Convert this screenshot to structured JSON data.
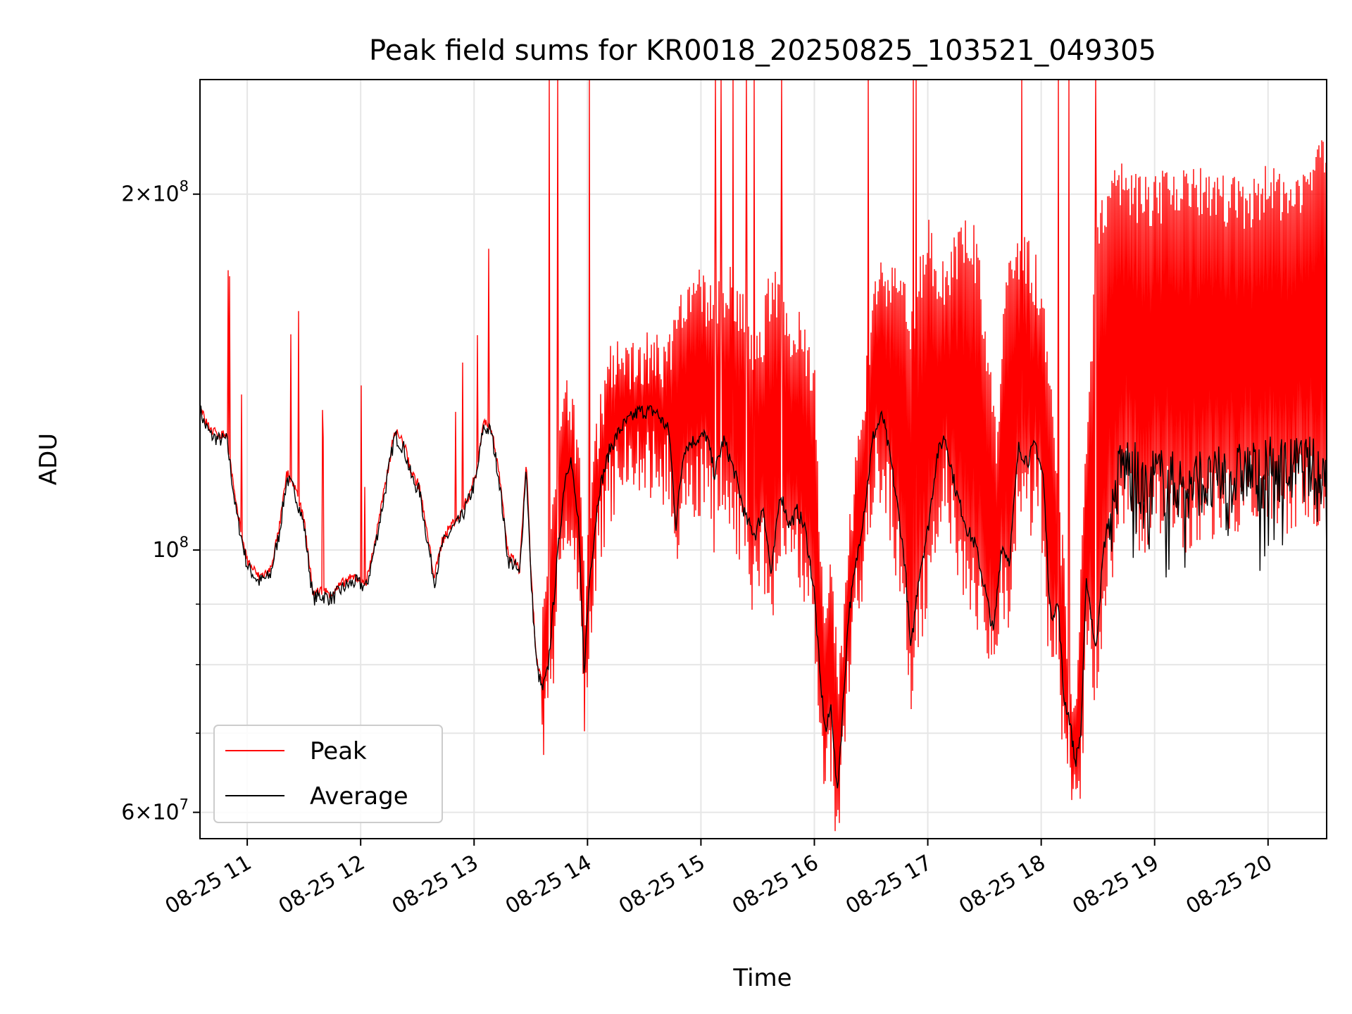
{
  "chart_data": {
    "type": "line",
    "title": "Peak field sums for KR0018_20250825_103521_049305",
    "xlabel": "Time",
    "ylabel": "ADU",
    "yscale": "log",
    "grid": true,
    "legend_position": "lower-left",
    "xlim": [
      "2025-08-25 10:35",
      "2025-08-25 20:31"
    ],
    "ylim": [
      57000000,
      250000000
    ],
    "x_ticks": [
      "08-25 11",
      "08-25 12",
      "08-25 13",
      "08-25 14",
      "08-25 15",
      "08-25 16",
      "08-25 17",
      "08-25 18",
      "08-25 19",
      "08-25 20"
    ],
    "y_major_ticks": [
      {
        "value": 60000000,
        "label_mantissa": "6",
        "label_base": "10",
        "label_exp": "7"
      },
      {
        "value": 100000000,
        "label_mantissa": "",
        "label_base": "10",
        "label_exp": "8"
      },
      {
        "value": 200000000,
        "label_mantissa": "2",
        "label_base": "10",
        "label_exp": "8"
      }
    ],
    "y_minor_ticks": [
      70000000,
      80000000,
      90000000
    ],
    "x_time_unit": "hours",
    "series": [
      {
        "name": "Peak",
        "color": "#ff0000",
        "x": [
          10.58,
          10.65,
          10.75,
          10.8,
          10.95,
          11.1,
          11.2,
          11.3,
          11.38,
          11.45,
          11.5,
          11.6,
          11.75,
          11.9,
          12.0,
          12.1,
          12.2,
          12.35,
          12.5,
          12.55,
          12.62,
          12.7,
          12.8,
          12.9,
          13.0,
          13.08,
          13.18,
          13.25,
          13.35,
          13.45,
          13.5,
          13.55,
          13.62,
          13.7,
          13.8,
          13.92,
          13.98,
          14.08,
          14.2,
          14.35,
          14.5,
          14.65,
          14.8,
          14.95,
          15.1,
          15.25,
          15.4,
          15.5,
          15.62,
          15.75,
          15.9,
          16.0,
          16.05,
          16.1,
          16.15,
          16.22,
          16.3,
          16.42,
          16.55,
          16.7,
          16.85,
          17.0,
          17.1,
          17.25,
          17.4,
          17.5,
          17.6,
          17.7,
          17.85,
          17.98,
          18.1,
          18.2,
          18.25,
          18.3,
          18.38,
          18.5,
          18.65,
          18.8,
          19.0,
          19.2,
          19.4,
          19.6,
          19.8,
          20.0,
          20.2,
          20.4,
          20.51
        ],
        "values": [
          135000000,
          128000000,
          126000000,
          125000000,
          108000000,
          97000000,
          94000000,
          96000000,
          112000000,
          118000000,
          107000000,
          92000000,
          91000000,
          93000000,
          95000000,
          94000000,
          105000000,
          124000000,
          115000000,
          114000000,
          97000000,
          105000000,
          107000000,
          113000000,
          115000000,
          129000000,
          121000000,
          103000000,
          96000000,
          118000000,
          85000000,
          78000000,
          83000000,
          97000000,
          125000000,
          108000000,
          80000000,
          112000000,
          128000000,
          130000000,
          130000000,
          129000000,
          140000000,
          150000000,
          145000000,
          150000000,
          140000000,
          130000000,
          150000000,
          140000000,
          135000000,
          125000000,
          90000000,
          80000000,
          85000000,
          70000000,
          90000000,
          115000000,
          150000000,
          155000000,
          140000000,
          165000000,
          150000000,
          160000000,
          165000000,
          140000000,
          110000000,
          155000000,
          160000000,
          150000000,
          120000000,
          85000000,
          70000000,
          65000000,
          100000000,
          170000000,
          185000000,
          180000000,
          178000000,
          182000000,
          180000000,
          178000000,
          176000000,
          182000000,
          180000000,
          185000000,
          195000000
        ]
      },
      {
        "name": "Average",
        "color": "#000000",
        "x": [
          10.58,
          10.62,
          10.68,
          10.75,
          10.82,
          10.9,
          11.0,
          11.1,
          11.2,
          11.28,
          11.35,
          11.42,
          11.5,
          11.58,
          11.65,
          11.75,
          11.85,
          11.95,
          12.05,
          12.12,
          12.2,
          12.3,
          12.38,
          12.45,
          12.52,
          12.58,
          12.65,
          12.72,
          12.8,
          12.88,
          12.95,
          13.02,
          13.08,
          13.15,
          13.22,
          13.3,
          13.36,
          13.4,
          13.46,
          13.5,
          13.55,
          13.6,
          13.65,
          13.72,
          13.8,
          13.85,
          13.92,
          13.97,
          14.02,
          14.1,
          14.2,
          14.3,
          14.45,
          14.6,
          14.72,
          14.78,
          14.85,
          14.95,
          15.05,
          15.12,
          15.2,
          15.3,
          15.4,
          15.48,
          15.55,
          15.62,
          15.7,
          15.78,
          15.85,
          15.92,
          16.0,
          16.05,
          16.1,
          16.15,
          16.2,
          16.25,
          16.3,
          16.38,
          16.45,
          16.52,
          16.6,
          16.68,
          16.75,
          16.8,
          16.85,
          16.92,
          17.0,
          17.08,
          17.15,
          17.25,
          17.35,
          17.42,
          17.5,
          17.58,
          17.65,
          17.72,
          17.8,
          17.88,
          17.95,
          18.02,
          18.08,
          18.15,
          18.2,
          18.25,
          18.3,
          18.35,
          18.4,
          18.48,
          18.55,
          18.62,
          18.7,
          18.8,
          18.9,
          19.0,
          19.1,
          19.2,
          19.3,
          19.4,
          19.5,
          19.6,
          19.7,
          19.8,
          19.9,
          20.0,
          20.1,
          20.2,
          20.3,
          20.4,
          20.51
        ],
        "values": [
          132000000,
          128000000,
          125000000,
          124000000,
          124000000,
          108000000,
          97000000,
          94000000,
          95000000,
          103000000,
          115000000,
          112000000,
          105000000,
          91000000,
          91500000,
          91000000,
          93000000,
          94000000,
          93000000,
          100000000,
          110000000,
          125000000,
          122000000,
          115000000,
          112000000,
          103000000,
          94000000,
          101000000,
          104000000,
          106000000,
          110000000,
          115000000,
          127000000,
          126000000,
          115000000,
          98000000,
          97000000,
          95000000,
          118000000,
          95000000,
          80000000,
          76000000,
          79000000,
          95000000,
          115000000,
          120000000,
          105000000,
          79000000,
          95000000,
          112000000,
          122000000,
          127000000,
          131000000,
          131000000,
          126000000,
          105000000,
          122000000,
          124000000,
          125000000,
          116000000,
          124000000,
          116000000,
          106000000,
          103000000,
          109000000,
          95000000,
          112000000,
          105000000,
          108000000,
          104000000,
          92000000,
          78000000,
          70000000,
          74000000,
          62000000,
          73000000,
          88000000,
          99000000,
          110000000,
          125000000,
          130000000,
          118000000,
          106000000,
          97000000,
          82000000,
          95000000,
          104000000,
          120000000,
          125000000,
          112000000,
          104000000,
          101000000,
          93000000,
          85000000,
          101000000,
          98000000,
          122000000,
          119000000,
          123000000,
          115000000,
          88000000,
          90000000,
          75000000,
          72000000,
          66000000,
          70000000,
          95000000,
          82000000,
          100000000,
          110000000,
          122000000,
          122000000,
          115000000,
          120000000,
          118000000,
          118000000,
          116000000,
          119000000,
          117000000,
          120000000,
          119000000,
          121000000,
          120000000,
          121000000,
          122000000,
          121000000,
          122000000,
          121000000,
          121000000
        ]
      }
    ]
  }
}
